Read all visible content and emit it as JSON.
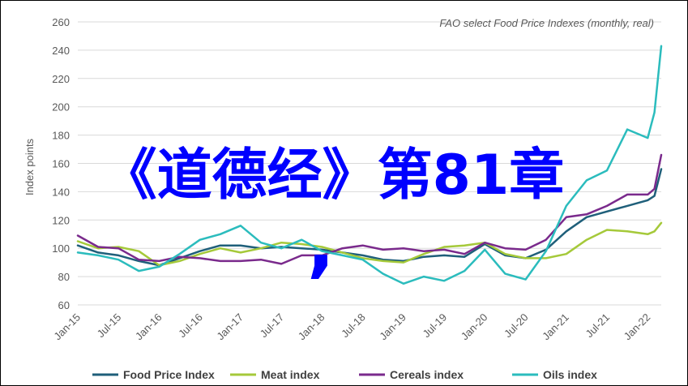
{
  "chart_data": {
    "type": "line",
    "title": "FAO select Food Price  Indexes (monthly, real)",
    "ylabel": "Index points",
    "xlabel": "",
    "ylim": [
      60,
      260
    ],
    "yticks": [
      60,
      80,
      100,
      120,
      140,
      160,
      180,
      200,
      220,
      240,
      260
    ],
    "xlim": [
      "2015-01",
      "2022-03"
    ],
    "xticks": [
      "Jan-15",
      "Jul-15",
      "Jan-16",
      "Jul-16",
      "Jan-17",
      "Jul-17",
      "Jan-18",
      "Jul-18",
      "Jan-19",
      "Jul-19",
      "Jan-20",
      "Jul-20",
      "Jan-21",
      "Jul-21",
      "Jan-22"
    ],
    "grid": true,
    "legend_position": "bottom",
    "series": [
      {
        "name": "Food Price Index",
        "color": "#1f5f7a",
        "x": [
          "2015-01",
          "2015-04",
          "2015-07",
          "2015-10",
          "2016-01",
          "2016-04",
          "2016-07",
          "2016-10",
          "2017-01",
          "2017-04",
          "2017-07",
          "2017-10",
          "2018-01",
          "2018-04",
          "2018-07",
          "2018-10",
          "2019-01",
          "2019-04",
          "2019-07",
          "2019-10",
          "2020-01",
          "2020-04",
          "2020-07",
          "2020-10",
          "2021-01",
          "2021-04",
          "2021-07",
          "2021-10",
          "2022-01",
          "2022-02",
          "2022-03"
        ],
        "values": [
          102,
          97,
          95,
          91,
          88,
          93,
          98,
          102,
          102,
          100,
          101,
          100,
          99,
          97,
          95,
          92,
          91,
          94,
          95,
          94,
          103,
          95,
          93,
          99,
          112,
          122,
          126,
          130,
          134,
          137,
          156
        ]
      },
      {
        "name": "Meat index",
        "color": "#a5c93a",
        "x": [
          "2015-01",
          "2015-04",
          "2015-07",
          "2015-10",
          "2016-01",
          "2016-04",
          "2016-07",
          "2016-10",
          "2017-01",
          "2017-04",
          "2017-07",
          "2017-10",
          "2018-01",
          "2018-04",
          "2018-07",
          "2018-10",
          "2019-01",
          "2019-04",
          "2019-07",
          "2019-10",
          "2020-01",
          "2020-04",
          "2020-07",
          "2020-10",
          "2021-01",
          "2021-04",
          "2021-07",
          "2021-10",
          "2022-01",
          "2022-02",
          "2022-03"
        ],
        "values": [
          105,
          100,
          101,
          98,
          88,
          91,
          96,
          100,
          97,
          100,
          104,
          103,
          101,
          97,
          93,
          91,
          90,
          96,
          101,
          102,
          104,
          96,
          93,
          93,
          96,
          106,
          113,
          112,
          110,
          112,
          118
        ]
      },
      {
        "name": "Cereals index",
        "color": "#7a2a8c",
        "x": [
          "2015-01",
          "2015-04",
          "2015-07",
          "2015-10",
          "2016-01",
          "2016-04",
          "2016-07",
          "2016-10",
          "2017-01",
          "2017-04",
          "2017-07",
          "2017-10",
          "2018-01",
          "2018-04",
          "2018-07",
          "2018-10",
          "2019-01",
          "2019-04",
          "2019-07",
          "2019-10",
          "2020-01",
          "2020-04",
          "2020-07",
          "2020-10",
          "2021-01",
          "2021-04",
          "2021-07",
          "2021-10",
          "2022-01",
          "2022-02",
          "2022-03"
        ],
        "values": [
          109,
          101,
          100,
          92,
          91,
          94,
          93,
          91,
          91,
          92,
          89,
          95,
          95,
          100,
          102,
          99,
          100,
          98,
          99,
          96,
          104,
          100,
          99,
          106,
          122,
          124,
          130,
          138,
          138,
          142,
          166
        ]
      },
      {
        "name": "Oils index",
        "color": "#2bbcbd",
        "x": [
          "2015-01",
          "2015-04",
          "2015-07",
          "2015-10",
          "2016-01",
          "2016-04",
          "2016-07",
          "2016-10",
          "2017-01",
          "2017-04",
          "2017-07",
          "2017-10",
          "2018-01",
          "2018-04",
          "2018-07",
          "2018-10",
          "2019-01",
          "2019-04",
          "2019-07",
          "2019-10",
          "2020-01",
          "2020-04",
          "2020-07",
          "2020-10",
          "2021-01",
          "2021-04",
          "2021-07",
          "2021-10",
          "2022-01",
          "2022-02",
          "2022-03"
        ],
        "values": [
          97,
          95,
          92,
          84,
          87,
          96,
          106,
          110,
          116,
          104,
          100,
          106,
          98,
          95,
          92,
          82,
          75,
          80,
          77,
          84,
          99,
          82,
          78,
          98,
          130,
          148,
          155,
          184,
          178,
          196,
          243
        ]
      }
    ]
  },
  "overlay": {
    "main_text": "《道德经》第81章",
    "comma": ",",
    "color": "#0000ff"
  }
}
